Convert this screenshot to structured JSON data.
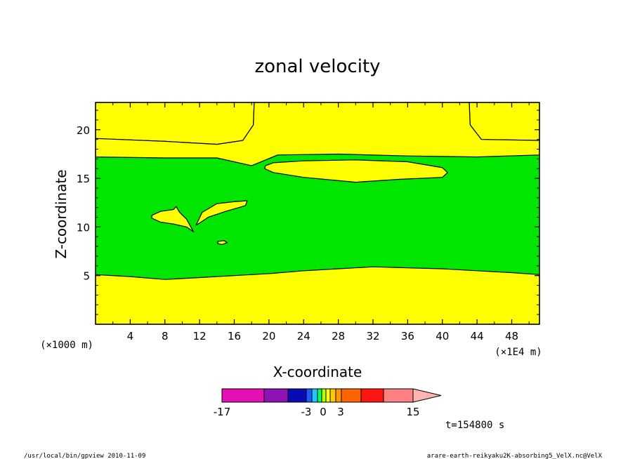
{
  "chart_data": {
    "type": "heatmap",
    "title": "zonal velocity",
    "xlabel": "X-coordinate",
    "ylabel": "Z-coordinate",
    "x_unit_label": "(×1E4 m)",
    "y_unit_label": "(×1000 m)",
    "xlim": [
      0,
      51.2
    ],
    "ylim": [
      0,
      22.8
    ],
    "x_ticks": [
      "4",
      "8",
      "12",
      "16",
      "20",
      "24",
      "28",
      "32",
      "36",
      "40",
      "44",
      "48"
    ],
    "y_ticks": [
      "5",
      "10",
      "15",
      "20"
    ],
    "grid": false,
    "regions": [
      {
        "name": "upper-jet-left",
        "level": "yellow",
        "polygon": [
          [
            0,
            19.1
          ],
          [
            8,
            18.8
          ],
          [
            14,
            18.5
          ],
          [
            17,
            18.9
          ],
          [
            18.2,
            20.5
          ],
          [
            18.3,
            22.8
          ],
          [
            0,
            22.8
          ]
        ]
      },
      {
        "name": "upper-jet-right",
        "level": "yellow",
        "polygon": [
          [
            43.1,
            22.8
          ],
          [
            43.2,
            20.5
          ],
          [
            44.5,
            19.0
          ],
          [
            51.2,
            18.9
          ],
          [
            51.2,
            22.8
          ]
        ]
      },
      {
        "name": "upper-band",
        "level": "yellow",
        "polygon": [
          [
            0,
            19.1
          ],
          [
            8,
            18.8
          ],
          [
            14,
            18.5
          ],
          [
            17,
            18.9
          ],
          [
            18.2,
            20.5
          ],
          [
            18.3,
            22.8
          ],
          [
            43.1,
            22.8
          ],
          [
            43.2,
            20.5
          ],
          [
            44.5,
            19.0
          ],
          [
            51.2,
            18.9
          ],
          [
            51.2,
            17.4
          ],
          [
            44,
            17.2
          ],
          [
            36,
            17.3
          ],
          [
            28,
            17.5
          ],
          [
            21,
            17.4
          ],
          [
            18,
            16.3
          ],
          [
            14,
            17.1
          ],
          [
            8,
            17.1
          ],
          [
            0,
            17.2
          ]
        ]
      },
      {
        "name": "upper-cell",
        "level": "yellow",
        "polygon": [
          [
            19.6,
            16.3
          ],
          [
            20.5,
            16.6
          ],
          [
            24,
            16.8
          ],
          [
            30,
            16.9
          ],
          [
            36,
            16.7
          ],
          [
            40,
            16.1
          ],
          [
            40.6,
            15.6
          ],
          [
            40,
            15.1
          ],
          [
            35,
            14.9
          ],
          [
            30,
            14.6
          ],
          [
            24,
            15.1
          ],
          [
            20.5,
            15.6
          ],
          [
            19.5,
            16.0
          ]
        ]
      },
      {
        "name": "small-cell-left",
        "level": "yellow",
        "polygon": [
          [
            6.5,
            11.2
          ],
          [
            7.5,
            11.6
          ],
          [
            9,
            11.8
          ],
          [
            9.3,
            12.1
          ],
          [
            9.7,
            11.5
          ],
          [
            10.5,
            10.8
          ],
          [
            11.3,
            9.5
          ],
          [
            10.5,
            10.0
          ],
          [
            9,
            10.3
          ],
          [
            7.5,
            10.5
          ],
          [
            6.5,
            10.9
          ]
        ]
      },
      {
        "name": "small-cell-right",
        "level": "yellow",
        "polygon": [
          [
            11.6,
            10.2
          ],
          [
            12.3,
            11.5
          ],
          [
            14,
            12.4
          ],
          [
            16,
            12.6
          ],
          [
            17.5,
            12.7
          ],
          [
            17.3,
            12.2
          ],
          [
            15,
            11.6
          ],
          [
            13,
            11.0
          ],
          [
            12,
            10.4
          ]
        ]
      },
      {
        "name": "tiny-cell",
        "level": "yellow",
        "polygon": [
          [
            14.1,
            8.5
          ],
          [
            14.8,
            8.6
          ],
          [
            15.2,
            8.4
          ],
          [
            14.6,
            8.2
          ],
          [
            14.1,
            8.3
          ]
        ]
      },
      {
        "name": "lower-layer",
        "level": "yellow",
        "polygon": [
          [
            0,
            5.1
          ],
          [
            4,
            4.9
          ],
          [
            8,
            4.6
          ],
          [
            12,
            4.8
          ],
          [
            16,
            5.0
          ],
          [
            20,
            5.2
          ],
          [
            24,
            5.5
          ],
          [
            28,
            5.7
          ],
          [
            32,
            5.9
          ],
          [
            36,
            5.8
          ],
          [
            40,
            5.7
          ],
          [
            44,
            5.5
          ],
          [
            48,
            5.3
          ],
          [
            51.2,
            5.1
          ],
          [
            51.2,
            0
          ],
          [
            0,
            0
          ]
        ]
      }
    ],
    "colorbar": {
      "colors": [
        "#e60fb4",
        "#8c14b4",
        "#0a0ab4",
        "#1e5aff",
        "#1ec8ff",
        "#00ff64",
        "#b4ff00",
        "#ffff00",
        "#ffc800",
        "#ff9600",
        "#ff6400",
        "#ff1414",
        "#ff8080",
        "#ffb4b4"
      ],
      "labels": [
        "-17",
        "-3",
        "0",
        "3",
        "15"
      ]
    },
    "time_label": "t=154800 s",
    "footer_left": "/usr/local/bin/gpview   2010-11-09",
    "footer_right": "arare-earth-reikyaku2K-absorbing5_VelX.nc@VelX"
  },
  "colors": {
    "green": "#00e600",
    "yellow": "#ffff00",
    "outline": "#000000"
  }
}
